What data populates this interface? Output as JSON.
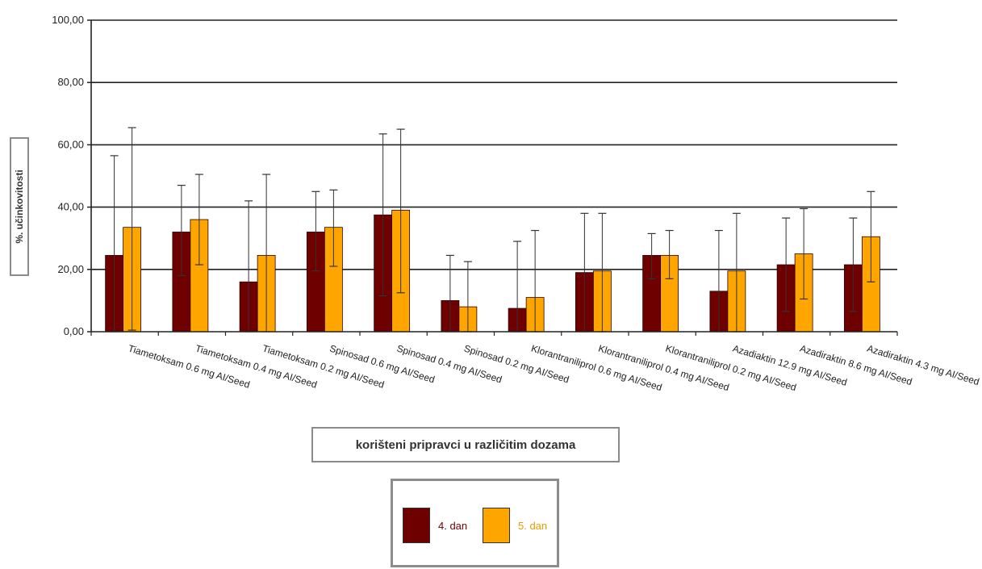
{
  "chart_data": {
    "type": "bar",
    "ylabel": "%. učinkovitosti",
    "xlabel": "korišteni pripravci u različitim dozama",
    "ylim": [
      0,
      100
    ],
    "y_ticks": [
      "0,00",
      "20,00",
      "40,00",
      "60,00",
      "80,00",
      "100,00"
    ],
    "grid": true,
    "legend_position": "bottom",
    "categories": [
      "Tiametoksam 0.6 mg AI/Seed",
      "Tiametoksam 0.4 mg AI/Seed",
      "Tiametoksam 0.2 mg AI/Seed",
      "Spinosad 0.6 mg AI/Seed",
      "Spinosad 0.4 mg AI/Seed",
      "Spinosad 0.2 mg AI/Seed",
      "Klorantraniliprol 0.6 mg AI/Seed",
      "Klorantraniliprol 0.4 mg AI/Seed",
      "Klorantraniliprol 0.2 mg AI/Seed",
      "Azadiaktin 12.9 mg AI/Seed",
      "Azadiraktin 8.6 mg AI/Seed",
      "Azadiraktin 4.3 mg AI/Seed"
    ],
    "series": [
      {
        "name": "4. dan",
        "color": "#6e0000",
        "values": [
          24.5,
          32.0,
          16.0,
          32.0,
          37.5,
          10.0,
          7.5,
          19.0,
          24.5,
          13.0,
          21.5,
          21.5
        ],
        "error_high": [
          56.5,
          47.0,
          42.0,
          45.0,
          63.5,
          24.5,
          29.0,
          38.0,
          31.5,
          32.5,
          36.5,
          36.5
        ],
        "error_low": [
          0,
          18.0,
          0,
          19.5,
          11.5,
          0,
          0,
          0,
          17.0,
          0,
          6.5,
          6.5
        ]
      },
      {
        "name": "5. dan",
        "color": "#ffa500",
        "values": [
          33.5,
          36.0,
          24.5,
          33.5,
          39.0,
          8.0,
          11.0,
          19.5,
          24.5,
          19.5,
          25.0,
          30.5
        ],
        "error_high": [
          65.5,
          50.5,
          50.5,
          45.5,
          65.0,
          22.5,
          32.5,
          38.0,
          32.5,
          38.0,
          39.5,
          45.0
        ],
        "error_low": [
          0.5,
          21.5,
          0,
          21.0,
          12.5,
          0,
          0,
          0,
          17.0,
          0,
          10.5,
          16.0
        ]
      }
    ]
  }
}
